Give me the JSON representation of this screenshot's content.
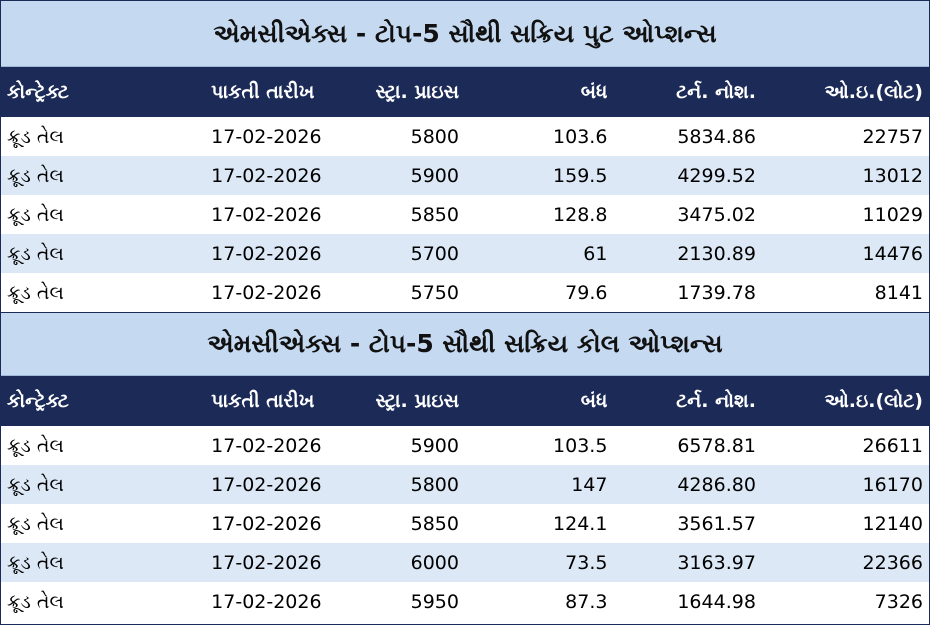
{
  "put_section": {
    "title": "એમસીએક્સ - ટોપ-5 સૌથી સક્રિય પુટ ઓપ્શન્સ",
    "headers": [
      "કોન્ટ્રેક્ટ",
      "પાકતી તારીખ",
      "સ્ટ્રા. પ્રાઇસ",
      "બંધ",
      "ટર્ન. નોશ.",
      "ઓ.ઇ.(લોટ)"
    ],
    "rows": [
      [
        "ક્રૂડ તેલ",
        "17-02-2026",
        "5800",
        "103.6",
        "5834.86",
        "22757"
      ],
      [
        "ક્રૂડ તેલ",
        "17-02-2026",
        "5900",
        "159.5",
        "4299.52",
        "13012"
      ],
      [
        "ક્રૂડ તેલ",
        "17-02-2026",
        "5850",
        "128.8",
        "3475.02",
        "11029"
      ],
      [
        "ક્રૂડ તેલ",
        "17-02-2026",
        "5700",
        "61",
        "2130.89",
        "14476"
      ],
      [
        "ક્રૂડ તેલ",
        "17-02-2026",
        "5750",
        "79.6",
        "1739.78",
        "8141"
      ]
    ]
  },
  "call_section": {
    "title": "એમસીએક્સ - ટોપ-5 સૌથી સક્રિય કોલ ઓપ્શન્સ",
    "headers": [
      "કોન્ટ્રેક્ટ",
      "પાકતી તારીખ",
      "સ્ટ્રા. પ્રાઇસ",
      "બંધ",
      "ટર્ન. નોશ.",
      "ઓ.ઇ.(લોટ)"
    ],
    "rows": [
      [
        "ક્રૂડ તેલ",
        "17-02-2026",
        "5900",
        "103.5",
        "6578.81",
        "26611"
      ],
      [
        "ક્રૂડ તેલ",
        "17-02-2026",
        "5800",
        "147",
        "4286.80",
        "16170"
      ],
      [
        "ક્રૂડ તેલ",
        "17-02-2026",
        "5850",
        "124.1",
        "3561.57",
        "12140"
      ],
      [
        "ક્રૂડ તેલ",
        "17-02-2026",
        "6000",
        "73.5",
        "3163.97",
        "22366"
      ],
      [
        "ક્રૂડ તેલ",
        "17-02-2026",
        "5950",
        "87.3",
        "1644.98",
        "7326"
      ]
    ]
  }
}
